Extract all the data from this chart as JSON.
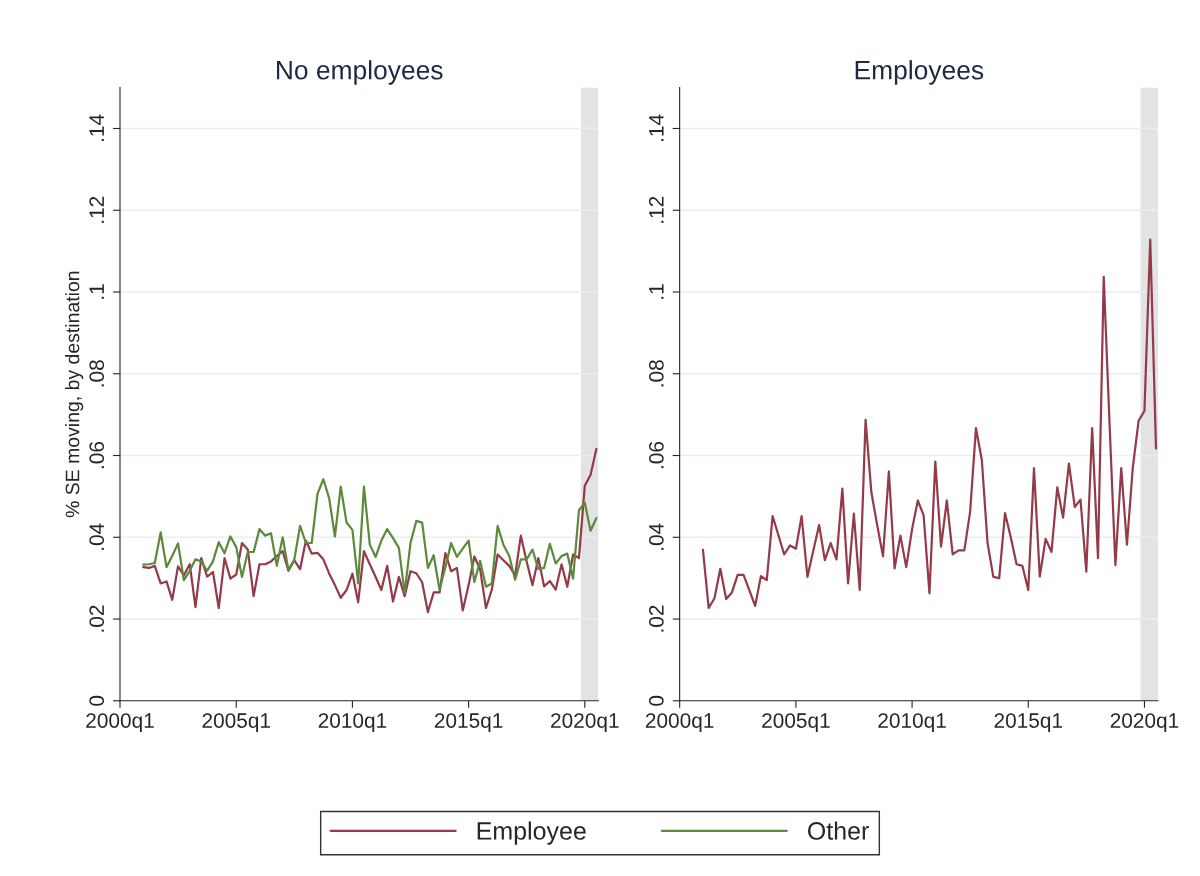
{
  "chart_data": [
    {
      "type": "line",
      "title": "No employees",
      "ylabel": "% SE moving, by destination",
      "x": [
        "2001-01",
        "2001-04",
        "2001-07",
        "2001-10",
        "2002-01",
        "2002-04",
        "2002-07",
        "2002-10",
        "2003-01",
        "2003-04",
        "2003-07",
        "2003-10",
        "2004-01",
        "2004-04",
        "2004-07",
        "2004-10",
        "2005-01",
        "2005-04",
        "2005-07",
        "2005-10",
        "2006-01",
        "2006-04",
        "2006-07",
        "2006-10",
        "2007-01",
        "2007-04",
        "2007-07",
        "2007-10",
        "2008-01",
        "2008-04",
        "2008-07",
        "2008-10",
        "2009-01",
        "2009-04",
        "2009-07",
        "2009-10",
        "2010-01",
        "2010-04",
        "2010-07",
        "2010-10",
        "2011-01",
        "2011-04",
        "2011-07",
        "2011-10",
        "2012-01",
        "2012-04",
        "2012-07",
        "2012-10",
        "2013-01",
        "2013-04",
        "2013-07",
        "2013-10",
        "2014-01",
        "2014-04",
        "2014-07",
        "2014-10",
        "2015-01",
        "2015-04",
        "2015-07",
        "2015-10",
        "2016-01",
        "2016-04",
        "2016-07",
        "2016-10",
        "2017-01",
        "2017-04",
        "2017-07",
        "2017-10",
        "2018-01",
        "2018-04",
        "2018-07",
        "2018-10",
        "2019-01",
        "2019-04",
        "2019-07",
        "2019-10",
        "2020-01",
        "2020-04",
        "2020-07"
      ],
      "series": [
        {
          "name": "Employee",
          "color": "#943b49",
          "values": [
            0.0327,
            0.0325,
            0.033,
            0.0287,
            0.0292,
            0.0247,
            0.0329,
            0.0307,
            0.0334,
            0.0229,
            0.0349,
            0.0304,
            0.0315,
            0.0227,
            0.0349,
            0.0299,
            0.0309,
            0.0386,
            0.037,
            0.0256,
            0.0334,
            0.0334,
            0.0341,
            0.0354,
            0.0366,
            0.0318,
            0.0344,
            0.0322,
            0.0392,
            0.036,
            0.0362,
            0.0346,
            0.0311,
            0.0283,
            0.0252,
            0.0271,
            0.0311,
            0.0241,
            0.0366,
            0.0334,
            0.0303,
            0.0271,
            0.033,
            0.0243,
            0.0303,
            0.0256,
            0.0317,
            0.0312,
            0.029,
            0.0217,
            0.0265,
            0.0265,
            0.0361,
            0.0317,
            0.0325,
            0.0221,
            0.0283,
            0.0353,
            0.0322,
            0.0227,
            0.0272,
            0.0358,
            0.0344,
            0.033,
            0.0307,
            0.0404,
            0.0341,
            0.0283,
            0.0349,
            0.028,
            0.0293,
            0.0272,
            0.0334,
            0.0279,
            0.0358,
            0.0349,
            0.0526,
            0.0553,
            0.0616
          ]
        },
        {
          "name": "Other",
          "color": "#5b8a3c",
          "values": [
            0.0333,
            0.0334,
            0.0337,
            0.0412,
            0.0327,
            0.0354,
            0.0385,
            0.0295,
            0.0318,
            0.0346,
            0.0341,
            0.0318,
            0.0341,
            0.0388,
            0.0361,
            0.0402,
            0.0376,
            0.0303,
            0.0364,
            0.0364,
            0.042,
            0.0404,
            0.041,
            0.033,
            0.04,
            0.032,
            0.0344,
            0.0428,
            0.0386,
            0.0386,
            0.0506,
            0.0542,
            0.0495,
            0.0402,
            0.0524,
            0.0436,
            0.0418,
            0.0287,
            0.0524,
            0.0382,
            0.0352,
            0.0392,
            0.042,
            0.0398,
            0.0374,
            0.0264,
            0.0386,
            0.044,
            0.0436,
            0.0325,
            0.0356,
            0.0272,
            0.0327,
            0.0386,
            0.0352,
            0.0372,
            0.0392,
            0.0291,
            0.0342,
            0.0279,
            0.0287,
            0.0428,
            0.0382,
            0.0354,
            0.0296,
            0.0346,
            0.0346,
            0.037,
            0.0322,
            0.0325,
            0.0384,
            0.0336,
            0.0354,
            0.036,
            0.0299,
            0.0466,
            0.0484,
            0.0416,
            0.0447
          ]
        }
      ],
      "xlim": [
        "2000-01",
        "2020-08"
      ],
      "xticks": [
        {
          "value": "2000-01",
          "label": "2000q1"
        },
        {
          "value": "2005-01",
          "label": "2005q1"
        },
        {
          "value": "2010-01",
          "label": "2010q1"
        },
        {
          "value": "2015-01",
          "label": "2015q1"
        },
        {
          "value": "2020-01",
          "label": "2020q1"
        }
      ],
      "ylim": [
        0,
        0.15
      ],
      "yticks": [
        {
          "value": 0,
          "label": "0"
        },
        {
          "value": 0.02,
          "label": ".02"
        },
        {
          "value": 0.04,
          "label": ".04"
        },
        {
          "value": 0.06,
          "label": ".06"
        },
        {
          "value": 0.08,
          "label": ".08"
        },
        {
          "value": 0.1,
          "label": ".1"
        },
        {
          "value": 0.12,
          "label": ".12"
        },
        {
          "value": 0.14,
          "label": ".14"
        }
      ],
      "bands": [
        {
          "axis": "x",
          "from": "2019-11",
          "to": "2020-08",
          "color": "#e3e3e3"
        }
      ],
      "grid": "y",
      "legend": "bottom"
    },
    {
      "type": "line",
      "title": "Employees",
      "x": [
        "2001-01",
        "2001-04",
        "2001-07",
        "2001-10",
        "2002-01",
        "2002-04",
        "2002-07",
        "2002-10",
        "2003-01",
        "2003-04",
        "2003-07",
        "2003-10",
        "2004-01",
        "2004-04",
        "2004-07",
        "2004-10",
        "2005-01",
        "2005-04",
        "2005-07",
        "2005-10",
        "2006-01",
        "2006-04",
        "2006-07",
        "2006-10",
        "2007-01",
        "2007-04",
        "2007-07",
        "2007-10",
        "2008-01",
        "2008-04",
        "2008-07",
        "2008-10",
        "2009-01",
        "2009-04",
        "2009-07",
        "2009-10",
        "2010-01",
        "2010-04",
        "2010-07",
        "2010-10",
        "2011-01",
        "2011-04",
        "2011-07",
        "2011-10",
        "2012-01",
        "2012-04",
        "2012-07",
        "2012-10",
        "2013-01",
        "2013-04",
        "2013-07",
        "2013-10",
        "2014-01",
        "2014-04",
        "2014-07",
        "2014-10",
        "2015-01",
        "2015-04",
        "2015-07",
        "2015-10",
        "2016-01",
        "2016-04",
        "2016-07",
        "2016-10",
        "2017-01",
        "2017-04",
        "2017-07",
        "2017-10",
        "2018-01",
        "2018-04",
        "2018-07",
        "2018-10",
        "2019-01",
        "2019-04",
        "2019-07",
        "2019-10",
        "2020-01",
        "2020-04",
        "2020-07"
      ],
      "series": [
        {
          "name": "Employee",
          "color": "#943b49",
          "values": [
            0.0369,
            0.0227,
            0.0251,
            0.0323,
            0.0249,
            0.0265,
            0.0308,
            0.0308,
            0.027,
            0.0232,
            0.0305,
            0.0295,
            0.0452,
            0.0405,
            0.0358,
            0.038,
            0.0372,
            0.0452,
            0.0303,
            0.0367,
            0.043,
            0.0344,
            0.0386,
            0.0346,
            0.0519,
            0.0287,
            0.0458,
            0.0271,
            0.0687,
            0.051,
            0.043,
            0.0354,
            0.0561,
            0.0324,
            0.0404,
            0.0327,
            0.042,
            0.049,
            0.0454,
            0.0263,
            0.0585,
            0.0377,
            0.049,
            0.0358,
            0.0368,
            0.0368,
            0.0462,
            0.0667,
            0.0589,
            0.0386,
            0.0303,
            0.03,
            0.0459,
            0.04,
            0.0334,
            0.033,
            0.0271,
            0.0569,
            0.0304,
            0.0396,
            0.0364,
            0.0522,
            0.0448,
            0.058,
            0.0474,
            0.0492,
            0.0316,
            0.0667,
            0.0349,
            0.1037,
            0.068,
            0.0332,
            0.0569,
            0.0382,
            0.0569,
            0.0685,
            0.0709,
            0.1128,
            0.0617
          ]
        }
      ],
      "xlim": [
        "2000-01",
        "2020-08"
      ],
      "xticks": [
        {
          "value": "2000-01",
          "label": "2000q1"
        },
        {
          "value": "2005-01",
          "label": "2005q1"
        },
        {
          "value": "2010-01",
          "label": "2010q1"
        },
        {
          "value": "2015-01",
          "label": "2015q1"
        },
        {
          "value": "2020-01",
          "label": "2020q1"
        }
      ],
      "ylim": [
        0,
        0.15
      ],
      "yticks": [
        {
          "value": 0,
          "label": "0"
        },
        {
          "value": 0.02,
          "label": ".02"
        },
        {
          "value": 0.04,
          "label": ".04"
        },
        {
          "value": 0.06,
          "label": ".06"
        },
        {
          "value": 0.08,
          "label": ".08"
        },
        {
          "value": 0.1,
          "label": ".1"
        },
        {
          "value": 0.12,
          "label": ".12"
        },
        {
          "value": 0.14,
          "label": ".14"
        }
      ],
      "bands": [
        {
          "axis": "x",
          "from": "2019-11",
          "to": "2020-08",
          "color": "#e3e3e3"
        }
      ],
      "grid": "y"
    }
  ]
}
